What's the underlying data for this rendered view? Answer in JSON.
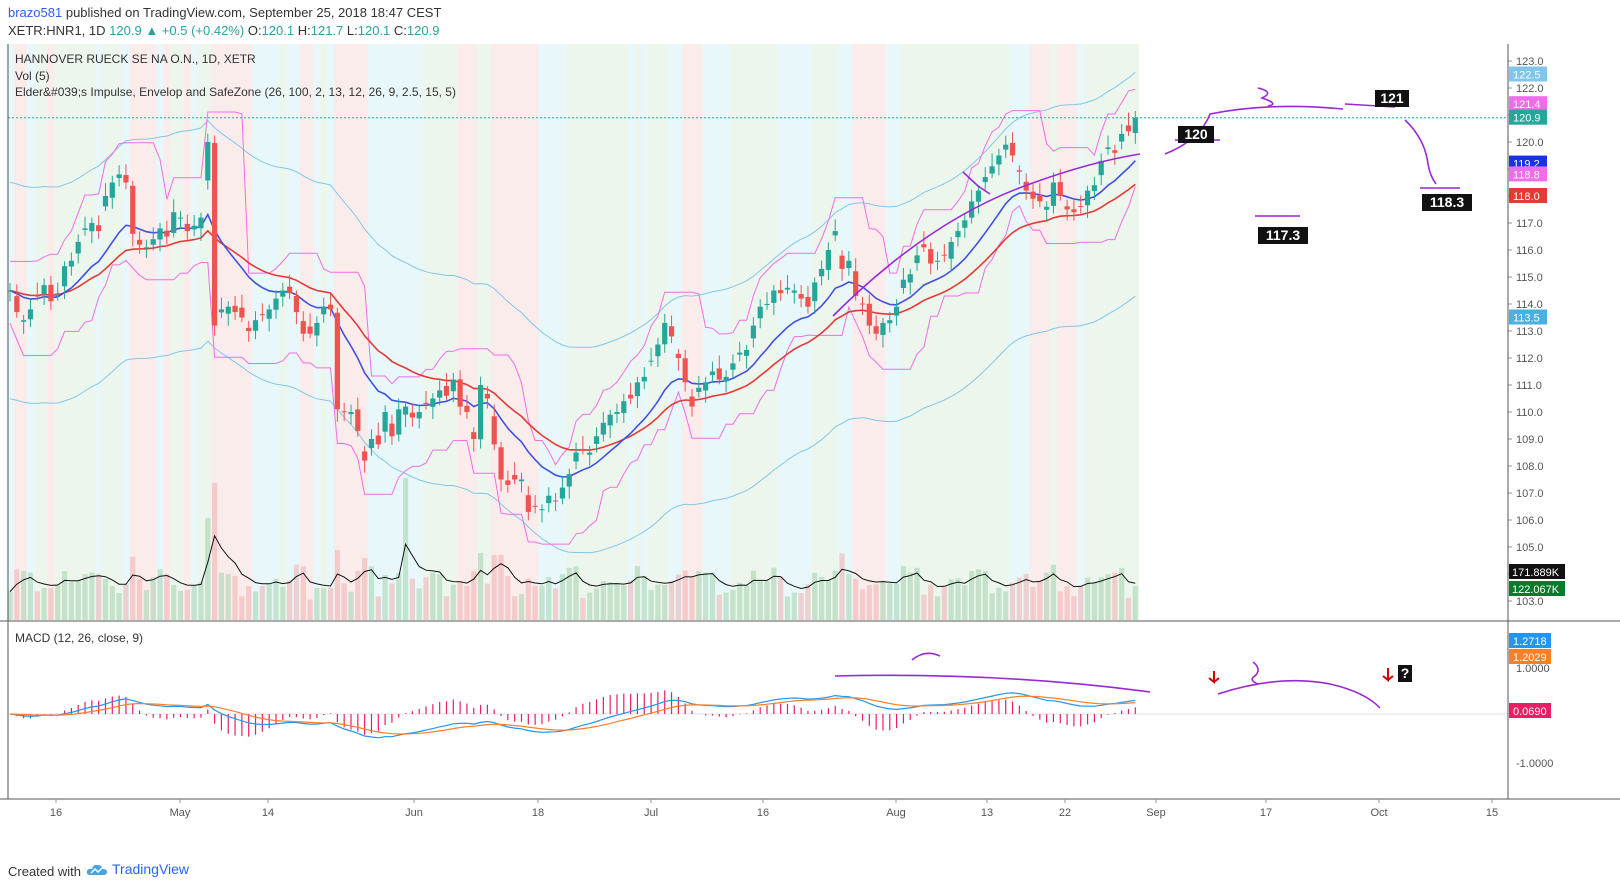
{
  "header": {
    "author": "brazo581",
    "published_text": "published on TradingView.com, September 25, 2018 18:47 CEST",
    "symbol": "XETR:HNR1, 1D",
    "last": "120.9",
    "change": "▲ +0.5 (+0.42%)",
    "o_label": "O:",
    "o_value": "120.1",
    "h_label": "H:",
    "h_value": "121.7",
    "l_label": "L:",
    "l_value": "120.1",
    "c_label": "C:",
    "c_value": "120.9"
  },
  "legend": {
    "title": "HANNOVER RUECK SE NA O.N., 1D, XETR",
    "volume": "Vol (5)",
    "indicator": "Elder&#039;s Impulse, Envelop and SafeZone (26, 100, 2, 13, 12, 26, 9, 2.5, 15, 5)",
    "macd": "MACD (12, 26, close, 9)"
  },
  "colors": {
    "up": "#26a69a",
    "down": "#ef5350",
    "ema_blue": "#3f51e0",
    "ema_red": "#e53935",
    "envelope": "#81c6ea",
    "safezone": "#f06ce8",
    "annotation": "#9c27d6",
    "macd": "#2196f3",
    "signal": "#ff7f27",
    "hist": "#e91e63",
    "bg_green": "#edf6ed",
    "bg_red": "#fbecec",
    "bg_cyan": "#e8f8fa"
  },
  "chart_data": [
    {
      "type": "candlestick",
      "title": "HANNOVER RUECK SE NA O.N., 1D, XETR",
      "x_axis_labels": [
        "16",
        "May",
        "14",
        "Jun",
        "18",
        "Jul",
        "16",
        "Aug",
        "13",
        "22",
        "Sep",
        "17",
        "Oct",
        "15"
      ],
      "y_ticks": [
        103.0,
        104.0,
        105.0,
        106.0,
        107.0,
        108.0,
        109.0,
        110.0,
        111.0,
        112.0,
        113.0,
        114.0,
        115.0,
        116.0,
        117.0,
        118.0,
        119.0,
        120.0,
        121.0,
        122.0,
        123.0
      ],
      "ylim": [
        102.5,
        123.4
      ],
      "close": [
        114.5,
        113.7,
        113.4,
        113.8,
        114.3,
        114.7,
        114.1,
        114.4,
        115.4,
        115.6,
        116.3,
        116.8,
        117.0,
        116.7,
        118.0,
        118.5,
        118.8,
        118.5,
        116.6,
        116.2,
        116.1,
        116.4,
        116.8,
        116.5,
        117.4,
        117.2,
        116.7,
        116.9,
        117.2,
        120.0,
        113.2,
        113.8,
        113.9,
        113.7,
        113.5,
        113.0,
        113.4,
        113.6,
        113.8,
        114.2,
        114.5,
        114.4,
        113.7,
        112.9,
        112.9,
        113.3,
        113.9,
        113.8,
        110.1,
        110.0,
        110.0,
        109.3,
        108.2,
        109.0,
        108.8,
        110.0,
        109.1,
        110.1,
        110.2,
        109.8,
        110.0,
        110.3,
        110.5,
        110.8,
        110.6,
        111.2,
        110.2,
        110.0,
        109.0,
        111.0,
        110.5,
        108.8,
        107.5,
        107.3,
        107.5,
        107.5,
        106.3,
        106.5,
        106.4,
        106.9,
        106.7,
        107.2,
        107.7,
        108.5,
        108.6,
        108.5,
        109.1,
        109.6,
        109.9,
        110.0,
        110.4,
        110.5,
        111.1,
        111.3,
        111.9,
        112.5,
        113.3,
        112.8,
        112.0,
        111.1,
        110.2,
        110.9,
        111.1,
        111.5,
        111.2,
        111.3,
        111.8,
        112.2,
        112.3,
        113.2,
        113.9,
        114.0,
        114.5,
        114.4,
        114.6,
        114.5,
        114.2,
        113.9,
        114.8,
        115.3,
        116.0,
        116.7,
        115.3,
        115.6,
        114.3,
        114.0,
        113.2,
        112.9,
        113.3,
        113.4,
        113.9,
        114.9,
        115.1,
        115.8,
        116.1,
        115.5,
        115.6,
        115.8,
        116.3,
        116.7,
        117.1,
        117.8,
        118.2,
        118.7,
        119.1,
        119.5,
        119.9,
        119.5,
        118.9,
        118.2,
        117.9,
        117.8,
        117.6,
        118.5,
        118.0,
        117.5,
        117.4,
        117.6,
        118.2,
        118.4,
        119.3,
        119.8,
        119.6,
        120.3,
        120.4,
        120.9
      ],
      "moving_averages": [
        {
          "name": "EMA 13",
          "color": "blue"
        },
        {
          "name": "EMA 26",
          "color": "red"
        }
      ],
      "price_labels": [
        {
          "value": 122.5,
          "text": "122.5"
        },
        {
          "value": 121.4,
          "text": "121.4"
        },
        {
          "value": 120.9,
          "text": "120.9"
        },
        {
          "value": 119.2,
          "text": "119.2"
        },
        {
          "value": 118.8,
          "text": "118.8"
        },
        {
          "value": 118.0,
          "text": "118.0"
        },
        {
          "value": 113.5,
          "text": "113.5"
        }
      ],
      "volume_labels": [
        {
          "text": "171.889K"
        },
        {
          "text": "122.067K"
        }
      ],
      "annotations": [
        "120",
        "121",
        "117.3",
        "118.3"
      ]
    },
    {
      "type": "line",
      "title": "MACD (12, 26, close, 9)",
      "series": [
        {
          "name": "MACD",
          "last": 1.2718
        },
        {
          "name": "Signal",
          "last": 1.2029
        },
        {
          "name": "Histogram",
          "last": 0.069
        }
      ],
      "y_ticks": [
        1.0,
        -1.0
      ],
      "value_labels": [
        "1.2718",
        "1.2029",
        "0.0690",
        "1.0000",
        "-1.0000"
      ],
      "annotations": [
        "?"
      ]
    }
  ],
  "footer": {
    "created": "Created with",
    "brand": "TradingView"
  }
}
